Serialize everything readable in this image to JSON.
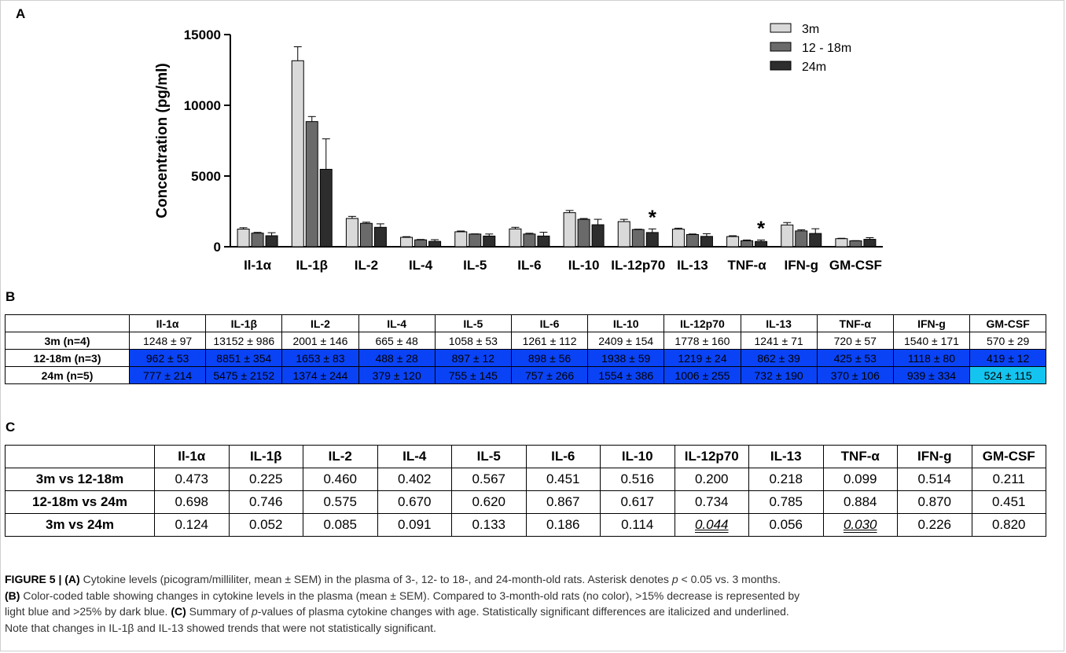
{
  "panel_labels": {
    "a": "A",
    "b": "B",
    "c": "C"
  },
  "chart_data": {
    "type": "bar",
    "ylabel": "Concentration (pg/ml)",
    "xlabel": "",
    "ylim": [
      0,
      15000
    ],
    "yticks": [
      0,
      5000,
      10000,
      15000
    ],
    "categories": [
      "Il-1α",
      "IL-1β",
      "IL-2",
      "IL-4",
      "IL-5",
      "IL-6",
      "IL-10",
      "IL-12p70",
      "IL-13",
      "TNF-α",
      "IFN-g",
      "GM-CSF"
    ],
    "series": [
      {
        "name": "3m",
        "color": "#d9d9d9",
        "values": [
          1248,
          13152,
          2001,
          665,
          1058,
          1261,
          2409,
          1778,
          1241,
          720,
          1540,
          570
        ],
        "errors": [
          97,
          986,
          146,
          48,
          53,
          112,
          154,
          160,
          71,
          57,
          171,
          29
        ]
      },
      {
        "name": "12 - 18m",
        "color": "#6a6a6a",
        "values": [
          962,
          8851,
          1653,
          488,
          897,
          898,
          1938,
          1219,
          862,
          425,
          1118,
          419
        ],
        "errors": [
          53,
          354,
          83,
          28,
          12,
          56,
          59,
          24,
          39,
          53,
          80,
          12
        ]
      },
      {
        "name": "24m",
        "color": "#2d2d2d",
        "values": [
          777,
          5475,
          1374,
          379,
          755,
          757,
          1554,
          1006,
          732,
          370,
          939,
          524
        ],
        "errors": [
          214,
          2152,
          244,
          120,
          145,
          266,
          386,
          255,
          190,
          106,
          334,
          115
        ]
      }
    ],
    "annotations": [
      {
        "category": "IL-12p70",
        "text": "*"
      },
      {
        "category": "TNF-α",
        "text": "*"
      }
    ],
    "legend_position": "top-right",
    "grid": false
  },
  "table_b": {
    "columns": [
      "",
      "Il-1α",
      "IL-1β",
      "IL-2",
      "IL-4",
      "IL-5",
      "IL-6",
      "IL-10",
      "IL-12p70",
      "IL-13",
      "TNF-α",
      "IFN-g",
      "GM-CSF"
    ],
    "rows": [
      {
        "label": "3m (n=4)",
        "cells": [
          "1248 ± 97",
          "13152 ± 986",
          "2001 ± 146",
          "665 ± 48",
          "1058 ± 53",
          "1261 ± 112",
          "2409 ± 154",
          "1778 ± 160",
          "1241 ± 71",
          "720 ± 57",
          "1540 ± 171",
          "570 ± 29"
        ],
        "shade": [
          "none",
          "none",
          "none",
          "none",
          "none",
          "none",
          "none",
          "none",
          "none",
          "none",
          "none",
          "none"
        ]
      },
      {
        "label": "12-18m (n=3)",
        "cells": [
          "962 ± 53",
          "8851 ± 354",
          "1653 ± 83",
          "488 ± 28",
          "897 ± 12",
          "898 ± 56",
          "1938 ± 59",
          "1219 ± 24",
          "862 ± 39",
          "425 ± 53",
          "1118 ± 80",
          "419 ± 12"
        ],
        "shade": [
          "dark",
          "dark",
          "dark",
          "dark",
          "dark",
          "dark",
          "dark",
          "dark",
          "dark",
          "dark",
          "dark",
          "dark"
        ]
      },
      {
        "label": "24m (n=5)",
        "cells": [
          "777 ± 214",
          "5475 ± 2152",
          "1374 ± 244",
          "379 ± 120",
          "755 ± 145",
          "757 ± 266",
          "1554 ± 386",
          "1006 ± 255",
          "732 ± 190",
          "370 ± 106",
          "939 ± 334",
          "524 ± 115"
        ],
        "shade": [
          "dark",
          "dark",
          "dark",
          "dark",
          "dark",
          "dark",
          "dark",
          "dark",
          "dark",
          "dark",
          "dark",
          "light"
        ]
      }
    ],
    "colors": {
      "dark": "#0a43f5",
      "light": "#14c4f0",
      "none": "#ffffff"
    }
  },
  "table_c": {
    "columns": [
      "",
      "Il-1α",
      "IL-1β",
      "IL-2",
      "IL-4",
      "IL-5",
      "IL-6",
      "IL-10",
      "IL-12p70",
      "IL-13",
      "TNF-α",
      "IFN-g",
      "GM-CSF"
    ],
    "rows": [
      {
        "label": "3m vs 12-18m",
        "cells": [
          "0.473",
          "0.225",
          "0.460",
          "0.402",
          "0.567",
          "0.451",
          "0.516",
          "0.200",
          "0.218",
          "0.099",
          "0.514",
          "0.211"
        ],
        "significant": []
      },
      {
        "label": "12-18m vs 24m",
        "cells": [
          "0.698",
          "0.746",
          "0.575",
          "0.670",
          "0.620",
          "0.867",
          "0.617",
          "0.734",
          "0.785",
          "0.884",
          "0.870",
          "0.451"
        ],
        "significant": []
      },
      {
        "label": "3m vs 24m",
        "cells": [
          "0.124",
          "0.052",
          "0.085",
          "0.091",
          "0.133",
          "0.186",
          "0.114",
          "0.044",
          "0.056",
          "0.030",
          "0.226",
          "0.820"
        ],
        "significant": [
          7,
          9
        ]
      }
    ]
  },
  "caption": {
    "l1_fig": "FIGURE 5 | ",
    "l1_a": "(A)",
    "l1_text1": " Cytokine levels (picogram/milliliter, mean ± SEM) in the plasma of 3-, 12- to 18-, and 24-month-old rats. Asterisk denotes ",
    "l1_p": "p",
    "l1_text2": " < 0.05 vs. 3 months.",
    "l2_b": "(B)",
    "l2_text": " Color-coded table showing changes in cytokine levels in the plasma (mean ± SEM). Compared to 3-month-old rats (no color), >15% decrease is represented by",
    "l3_text": "light blue and >25% by dark blue. ",
    "l3_c": "(C)",
    "l3_text2": " Summary of ",
    "l3_p": "p",
    "l3_text3": "-values of plasma cytokine changes with age. Statistically significant differences are italicized and underlined.",
    "l4_text": "Note that changes in IL-1β and IL-13 showed trends that were not statistically significant."
  }
}
